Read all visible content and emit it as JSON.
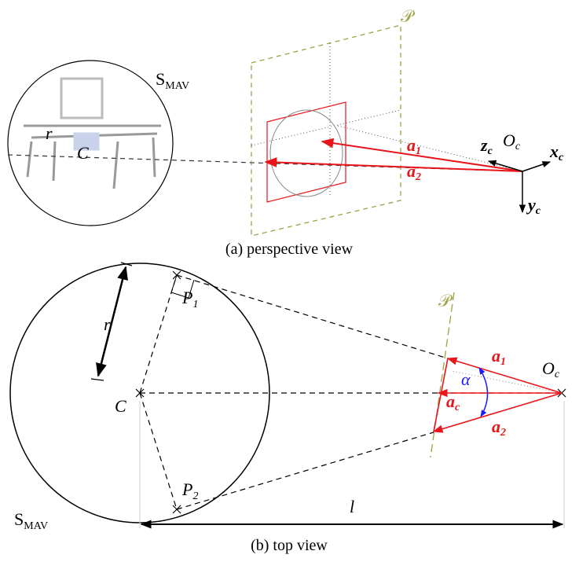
{
  "perspective_view": {
    "caption": "(a) perspective view",
    "sphere_label": {
      "base": "S",
      "sub": "MAV"
    },
    "radius_label": "r",
    "center_label": "C",
    "plane_label": "𝒫",
    "rays": [
      {
        "base": "a",
        "sub": "1"
      },
      {
        "base": "a",
        "sub": "2"
      }
    ],
    "axes": {
      "origin": {
        "base": "O",
        "sub": "c"
      },
      "x": {
        "base": "x",
        "sub": "c"
      },
      "y": {
        "base": "y",
        "sub": "c"
      },
      "z": {
        "base": "z",
        "sub": "c"
      }
    }
  },
  "top_view": {
    "caption": "(b) top view",
    "sphere_label": {
      "base": "S",
      "sub": "MAV"
    },
    "radius_label": "r",
    "center_label": "C",
    "tangent_points": [
      {
        "base": "P",
        "sub": "1"
      },
      {
        "base": "P",
        "sub": "2"
      }
    ],
    "plane_label": "𝒫",
    "rays": [
      {
        "base": "a",
        "sub": "1"
      },
      {
        "base": "a",
        "sub": "c"
      },
      {
        "base": "a",
        "sub": "2"
      }
    ],
    "angle_label": "α",
    "origin_label": {
      "base": "O",
      "sub": "c"
    },
    "distance_label": "l"
  }
}
